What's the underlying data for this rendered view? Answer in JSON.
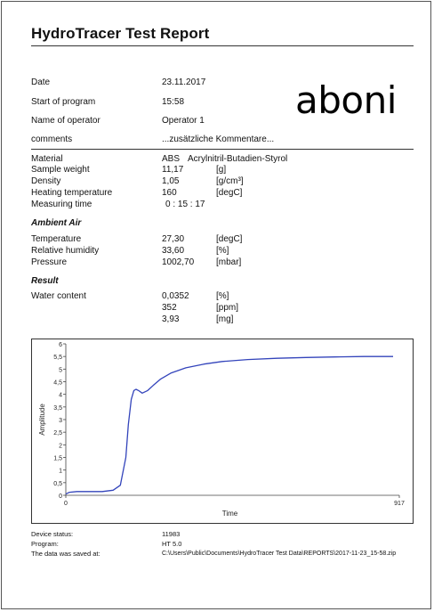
{
  "report_title": "HydroTracer Test Report",
  "logo_text": "aboni",
  "header_fields": [
    {
      "label": "Date",
      "value": "23.11.2017"
    },
    {
      "label": "Start of program",
      "value": "15:58"
    },
    {
      "label": "Name of operator",
      "value": "Operator 1"
    },
    {
      "label": "comments",
      "value": "...zusätzliche Kommentare..."
    }
  ],
  "sample": {
    "material_label": "Material",
    "material_code": "ABS",
    "material_name": "Acrylnitril-Butadien-Styrol",
    "rows": [
      {
        "label": "Sample weight",
        "value": "11,17",
        "unit": "[g]"
      },
      {
        "label": "Density",
        "value": "1,05",
        "unit": "[g/cm³]"
      },
      {
        "label": "Heating temperature",
        "value": "160",
        "unit": "[degC]"
      },
      {
        "label": "Measuring time",
        "value": "0 : 15 : 17",
        "unit": ""
      }
    ]
  },
  "ambient": {
    "heading": "Ambient Air",
    "rows": [
      {
        "label": "Temperature",
        "value": "27,30",
        "unit": "[degC]"
      },
      {
        "label": "Relative humidity",
        "value": "33,60",
        "unit": "[%]"
      },
      {
        "label": "Pressure",
        "value": "1002,70",
        "unit": "[mbar]"
      }
    ]
  },
  "result": {
    "heading": "Result",
    "label": "Water content",
    "rows": [
      {
        "value": "0,0352",
        "unit": "[%]"
      },
      {
        "value": "352",
        "unit": "[ppm]"
      },
      {
        "value": "3,93",
        "unit": "[mg]"
      }
    ]
  },
  "chart_data": {
    "type": "line",
    "xlabel": "Time",
    "ylabel": "Amplitude",
    "xlim": [
      0,
      917
    ],
    "ylim": [
      0,
      6
    ],
    "x_ticks": [
      "0",
      "917"
    ],
    "y_ticks": [
      "0",
      "0,5",
      "1",
      "1,5",
      "2",
      "2,5",
      "3",
      "3,5",
      "4",
      "4,5",
      "5",
      "5,5",
      "6"
    ],
    "grid": false,
    "line_color": "#3344bb",
    "series": [
      {
        "x": [
          0,
          10,
          30,
          60,
          100,
          130,
          150,
          165,
          172,
          180,
          187,
          193,
          200,
          210,
          225,
          240,
          260,
          290,
          330,
          380,
          430,
          500,
          580,
          660,
          740,
          820,
          900
        ],
        "y": [
          0.05,
          0.12,
          0.15,
          0.15,
          0.15,
          0.2,
          0.4,
          1.5,
          2.8,
          3.8,
          4.15,
          4.2,
          4.15,
          4.05,
          4.15,
          4.35,
          4.6,
          4.85,
          5.05,
          5.2,
          5.3,
          5.38,
          5.43,
          5.46,
          5.48,
          5.5,
          5.5
        ]
      }
    ]
  },
  "footer": [
    {
      "label": "Device status:",
      "value": "11983"
    },
    {
      "label": "Program:",
      "value": "HT 5.0"
    },
    {
      "label": "The data was saved at:",
      "value": "C:\\Users\\Public\\Documents\\HydroTracer Test Data\\REPORTS\\2017-11-23_15-58.zip"
    }
  ]
}
